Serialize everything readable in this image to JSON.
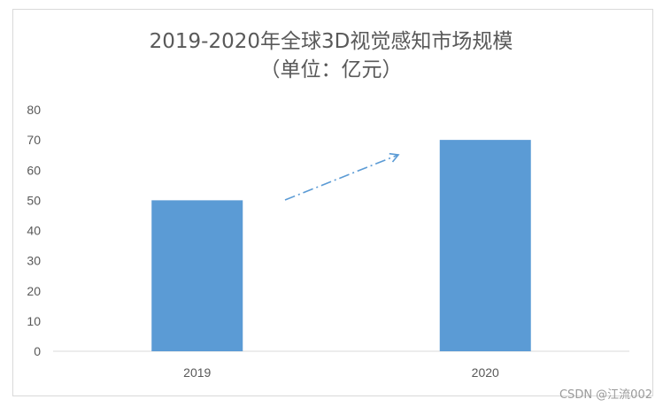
{
  "chart_data": {
    "type": "bar",
    "title": "2019-2020年全球3D视觉感知市场规模",
    "subtitle": "（单位：亿元）",
    "categories": [
      "2019",
      "2020"
    ],
    "values": [
      50,
      70
    ],
    "ylim": [
      0,
      80
    ],
    "yticks": [
      "0",
      "10",
      "20",
      "30",
      "40",
      "50",
      "60",
      "70",
      "80"
    ],
    "xlabel": "",
    "ylabel": "",
    "grid": false,
    "legend": "none",
    "bar_color": "#5b9bd5",
    "annotation": "dash-dot arrow pointing from 2019 bar toward 2020 bar (upward trend)"
  },
  "watermark": "CSDN @江流002"
}
